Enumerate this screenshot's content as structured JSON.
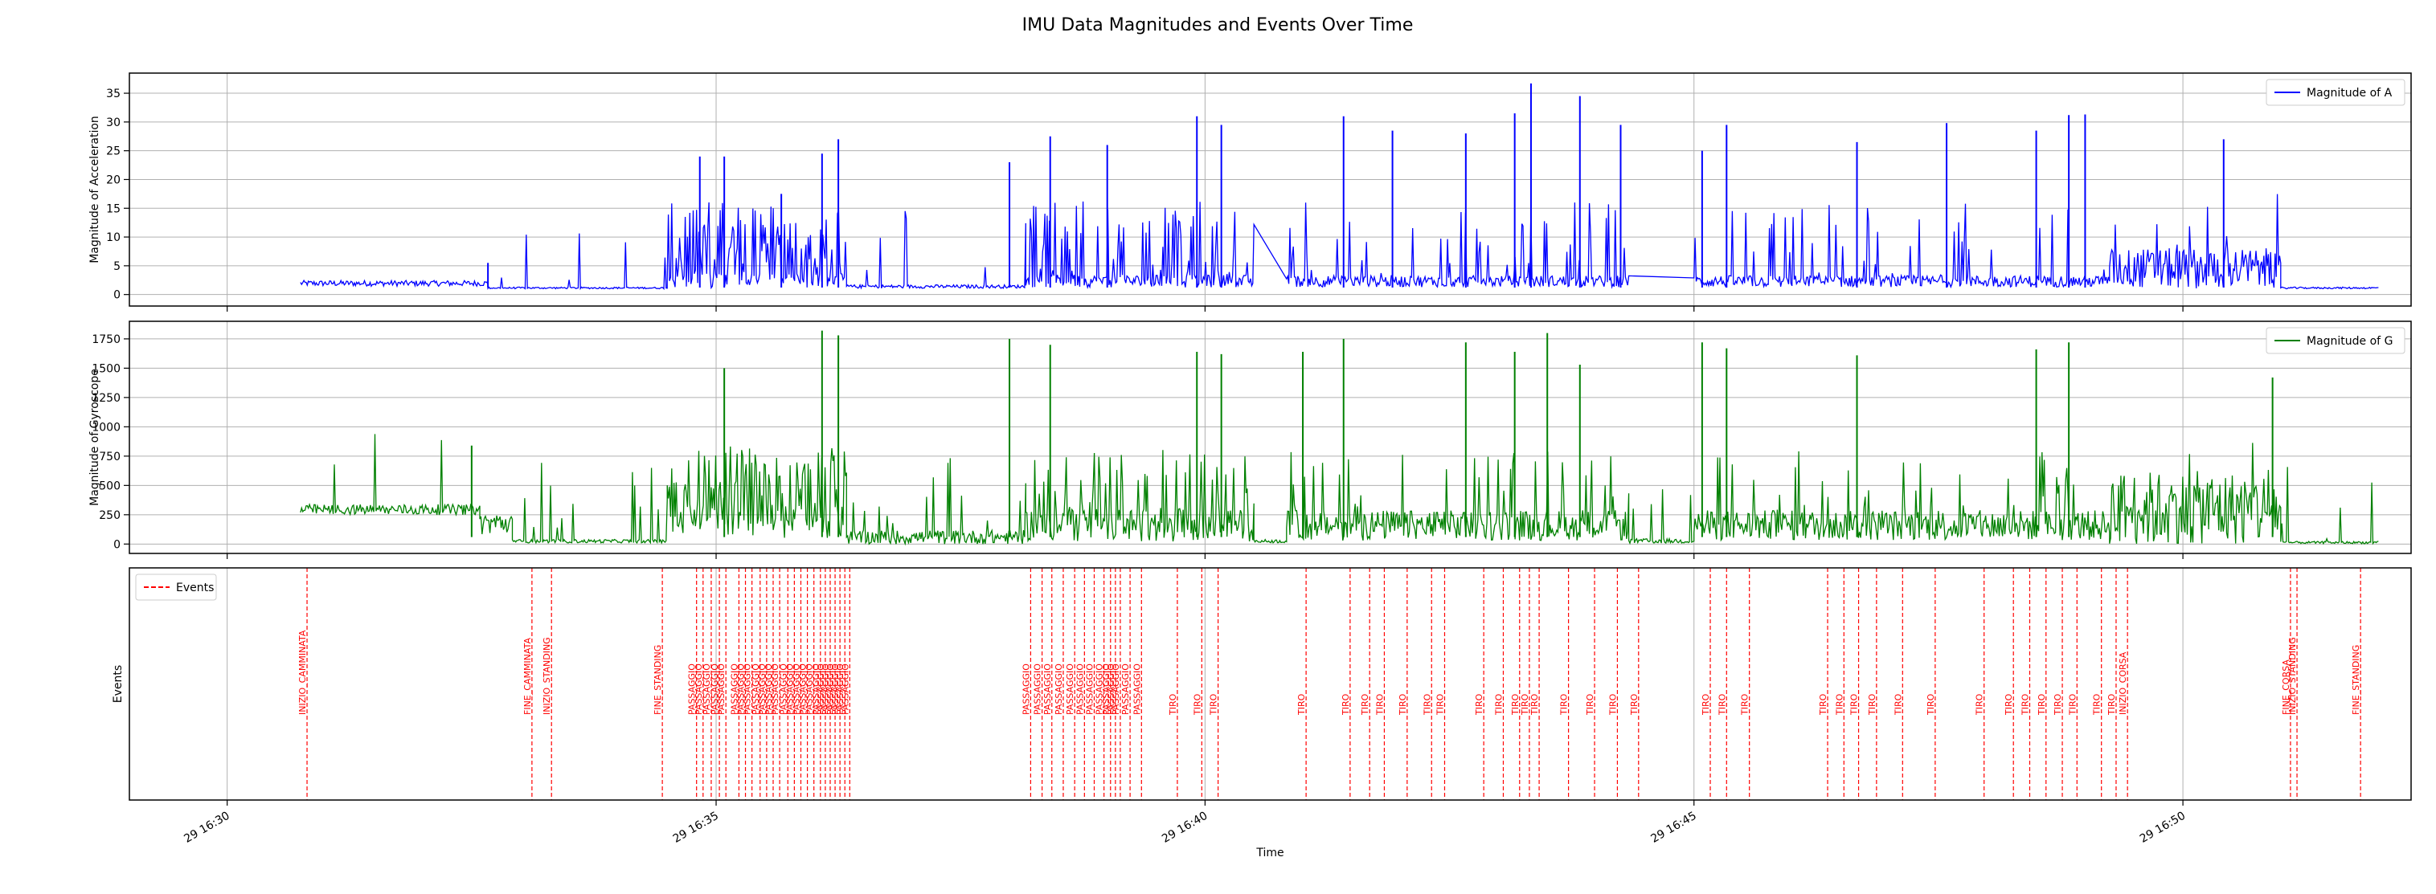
{
  "figure": {
    "title": "IMU Data Magnitudes and Events Over Time"
  },
  "colors": {
    "accel": "#0000ff",
    "gyro": "#008000",
    "events": "#ff0000",
    "grid": "#b0b0b0",
    "axes": "#000000"
  },
  "chart_data": [
    {
      "type": "line",
      "series": [
        {
          "name": "Magnitude of A",
          "color": "#0000ff"
        }
      ],
      "ylabel": "Magnitude of Acceleration",
      "xlabel": "",
      "xlim": [
        "16:29:00",
        "16:52:20"
      ],
      "ylim": [
        -2,
        38.5
      ],
      "yticks": [
        0,
        5,
        10,
        15,
        20,
        25,
        30,
        35
      ],
      "grid": true,
      "legend": "top-right",
      "activity_segments": [
        {
          "start": "16:30:45",
          "end": "16:32:40",
          "base": 1.8,
          "noise": 1.0,
          "spikes": 0
        },
        {
          "start": "16:32:40",
          "end": "16:34:30",
          "base": 1.1,
          "noise": 0.3,
          "spikes": 3
        },
        {
          "start": "16:34:30",
          "end": "16:36:20",
          "base": 2.0,
          "noise": 2.5,
          "spikes": 45
        },
        {
          "start": "16:36:20",
          "end": "16:38:10",
          "base": 1.3,
          "noise": 0.6,
          "spikes": 3
        },
        {
          "start": "16:38:10",
          "end": "16:40:30",
          "base": 2.0,
          "noise": 2.2,
          "spikes": 25
        },
        {
          "start": "16:40:50",
          "end": "16:44:20",
          "base": 2.0,
          "noise": 2.0,
          "spikes": 18
        },
        {
          "start": "16:45:00",
          "end": "16:49:15",
          "base": 2.0,
          "noise": 2.0,
          "spikes": 20
        },
        {
          "start": "16:49:15",
          "end": "16:51:00",
          "base": 3.5,
          "noise": 7.0,
          "spikes": 6
        },
        {
          "start": "16:51:00",
          "end": "16:52:00",
          "base": 1.1,
          "noise": 0.3,
          "spikes": 2
        }
      ],
      "spikes": [
        {
          "t": "16:32:40",
          "v": 5.5
        },
        {
          "t": "16:34:50",
          "v": 24.0
        },
        {
          "t": "16:35:05",
          "v": 24.0
        },
        {
          "t": "16:35:40",
          "v": 17.5
        },
        {
          "t": "16:36:05",
          "v": 24.5
        },
        {
          "t": "16:36:15",
          "v": 27.0
        },
        {
          "t": "16:38:00",
          "v": 23.0
        },
        {
          "t": "16:38:25",
          "v": 27.5
        },
        {
          "t": "16:39:00",
          "v": 26.0
        },
        {
          "t": "16:39:55",
          "v": 31.0
        },
        {
          "t": "16:40:10",
          "v": 29.5
        },
        {
          "t": "16:41:25",
          "v": 31.0
        },
        {
          "t": "16:41:55",
          "v": 28.5
        },
        {
          "t": "16:42:40",
          "v": 28.0
        },
        {
          "t": "16:43:10",
          "v": 31.5
        },
        {
          "t": "16:43:20",
          "v": 36.7
        },
        {
          "t": "16:43:50",
          "v": 34.5
        },
        {
          "t": "16:44:15",
          "v": 29.5
        },
        {
          "t": "16:45:05",
          "v": 25.0
        },
        {
          "t": "16:45:20",
          "v": 29.5
        },
        {
          "t": "16:46:40",
          "v": 26.5
        },
        {
          "t": "16:47:35",
          "v": 29.8
        },
        {
          "t": "16:48:30",
          "v": 28.5
        },
        {
          "t": "16:48:50",
          "v": 31.2
        },
        {
          "t": "16:49:00",
          "v": 31.3
        },
        {
          "t": "16:50:25",
          "v": 27.0
        }
      ]
    },
    {
      "type": "line",
      "series": [
        {
          "name": "Magnitude of G",
          "color": "#008000"
        }
      ],
      "ylabel": "Magnitude of Gyroscope",
      "xlabel": "",
      "xlim": [
        "16:29:00",
        "16:52:20"
      ],
      "ylim": [
        -80,
        1900
      ],
      "yticks": [
        0,
        250,
        500,
        750,
        1000,
        1250,
        1500,
        1750
      ],
      "grid": true,
      "legend": "top-right",
      "activity_segments": [
        {
          "start": "16:30:45",
          "end": "16:32:35",
          "base": 280,
          "noise": 90,
          "spikes": 1
        },
        {
          "start": "16:32:35",
          "end": "16:32:55",
          "base": 150,
          "noise": 200,
          "spikes": 0
        },
        {
          "start": "16:32:55",
          "end": "16:34:30",
          "base": 20,
          "noise": 30,
          "spikes": 6
        },
        {
          "start": "16:34:30",
          "end": "16:36:20",
          "base": 150,
          "noise": 280,
          "spikes": 45
        },
        {
          "start": "16:36:20",
          "end": "16:38:10",
          "base": 40,
          "noise": 120,
          "spikes": 6
        },
        {
          "start": "16:38:10",
          "end": "16:40:30",
          "base": 120,
          "noise": 280,
          "spikes": 25
        },
        {
          "start": "16:40:30",
          "end": "16:40:50",
          "base": 20,
          "noise": 30,
          "spikes": 0
        },
        {
          "start": "16:40:50",
          "end": "16:44:20",
          "base": 120,
          "noise": 260,
          "spikes": 18
        },
        {
          "start": "16:44:20",
          "end": "16:45:00",
          "base": 20,
          "noise": 40,
          "spikes": 2
        },
        {
          "start": "16:45:00",
          "end": "16:49:15",
          "base": 120,
          "noise": 260,
          "spikes": 20
        },
        {
          "start": "16:49:15",
          "end": "16:51:00",
          "base": 200,
          "noise": 650,
          "spikes": 6
        },
        {
          "start": "16:51:00",
          "end": "16:52:00",
          "base": 10,
          "noise": 20,
          "spikes": 2
        }
      ],
      "spikes": [
        {
          "t": "16:32:30",
          "v": 840
        },
        {
          "t": "16:35:05",
          "v": 1500
        },
        {
          "t": "16:36:05",
          "v": 1820
        },
        {
          "t": "16:36:15",
          "v": 1780
        },
        {
          "t": "16:38:00",
          "v": 1750
        },
        {
          "t": "16:38:25",
          "v": 1700
        },
        {
          "t": "16:39:55",
          "v": 1640
        },
        {
          "t": "16:40:10",
          "v": 1620
        },
        {
          "t": "16:41:00",
          "v": 1640
        },
        {
          "t": "16:41:25",
          "v": 1750
        },
        {
          "t": "16:42:40",
          "v": 1720
        },
        {
          "t": "16:43:10",
          "v": 1640
        },
        {
          "t": "16:43:30",
          "v": 1800
        },
        {
          "t": "16:43:50",
          "v": 1530
        },
        {
          "t": "16:45:05",
          "v": 1720
        },
        {
          "t": "16:45:20",
          "v": 1670
        },
        {
          "t": "16:46:40",
          "v": 1610
        },
        {
          "t": "16:48:30",
          "v": 1660
        },
        {
          "t": "16:48:50",
          "v": 1720
        },
        {
          "t": "16:50:55",
          "v": 1420
        }
      ]
    },
    {
      "type": "event-lines",
      "series": [
        {
          "name": "Events",
          "color": "#ff0000"
        }
      ],
      "ylabel": "Events",
      "xlabel": "Time",
      "xlim": [
        "16:29:00",
        "16:52:20"
      ],
      "xticks": [
        {
          "t": "16:30:00",
          "label": "29 16:30"
        },
        {
          "t": "16:35:00",
          "label": "29 16:35"
        },
        {
          "t": "16:40:00",
          "label": "29 16:40"
        },
        {
          "t": "16:45:00",
          "label": "29 16:45"
        },
        {
          "t": "16:50:00",
          "label": "29 16:50"
        }
      ],
      "grid": true,
      "legend": "top-left",
      "events": [
        {
          "t": "16:30:49",
          "label": "INIZIO_CAMMINATA"
        },
        {
          "t": "16:33:07",
          "label": "FINE_CAMMINATA"
        },
        {
          "t": "16:33:19",
          "label": "INIZIO_STANDING"
        },
        {
          "t": "16:34:27",
          "label": "FINE_STANDING"
        },
        {
          "t": "16:34:48",
          "label": "PASSAGGIO"
        },
        {
          "t": "16:34:52",
          "label": "PASSAGGIO"
        },
        {
          "t": "16:34:57",
          "label": "PASSAGGIO"
        },
        {
          "t": "16:35:02",
          "label": "PASSAGGIO"
        },
        {
          "t": "16:35:06",
          "label": "PASSAGGIO"
        },
        {
          "t": "16:35:14",
          "label": "PASSAGGIO"
        },
        {
          "t": "16:35:18",
          "label": "PASSAGGIO"
        },
        {
          "t": "16:35:22",
          "label": "PASSAGGIO"
        },
        {
          "t": "16:35:27",
          "label": "PASSAGGIO"
        },
        {
          "t": "16:35:31",
          "label": "PASSAGGIO"
        },
        {
          "t": "16:35:35",
          "label": "PASSAGGIO"
        },
        {
          "t": "16:35:39",
          "label": "PASSAGGIO"
        },
        {
          "t": "16:35:44",
          "label": "PASSAGGIO"
        },
        {
          "t": "16:35:48",
          "label": "PASSAGGIO"
        },
        {
          "t": "16:35:52",
          "label": "PASSAGGIO"
        },
        {
          "t": "16:35:56",
          "label": "PASSAGGIO"
        },
        {
          "t": "16:36:00",
          "label": "PASSAGGIO"
        },
        {
          "t": "16:36:04",
          "label": "PASSAGGIO"
        },
        {
          "t": "16:36:07",
          "label": "PASSAGGIO"
        },
        {
          "t": "16:36:10",
          "label": "PASSAGGIO"
        },
        {
          "t": "16:36:13",
          "label": "PASSAGGIO"
        },
        {
          "t": "16:36:16",
          "label": "PASSAGGIO"
        },
        {
          "t": "16:36:19",
          "label": "PASSAGGIO"
        },
        {
          "t": "16:36:22",
          "label": "PASSAGGIO"
        },
        {
          "t": "16:38:13",
          "label": "PASSAGGIO"
        },
        {
          "t": "16:38:20",
          "label": "PASSAGGIO"
        },
        {
          "t": "16:38:26",
          "label": "PASSAGGIO"
        },
        {
          "t": "16:38:33",
          "label": "PASSAGGIO"
        },
        {
          "t": "16:38:40",
          "label": "PASSAGGIO"
        },
        {
          "t": "16:38:46",
          "label": "PASSAGGIO"
        },
        {
          "t": "16:38:52",
          "label": "PASSAGGIO"
        },
        {
          "t": "16:38:58",
          "label": "PASSAGGIO"
        },
        {
          "t": "16:39:02",
          "label": "PASSAGGIO"
        },
        {
          "t": "16:39:05",
          "label": "PASSAGGIO"
        },
        {
          "t": "16:39:08",
          "label": "PASSAGGIO"
        },
        {
          "t": "16:39:14",
          "label": "PASSAGGIO"
        },
        {
          "t": "16:39:21",
          "label": "PASSAGGIO"
        },
        {
          "t": "16:39:43",
          "label": "TIRO"
        },
        {
          "t": "16:39:58",
          "label": "TIRO"
        },
        {
          "t": "16:40:08",
          "label": "TIRO"
        },
        {
          "t": "16:41:02",
          "label": "TIRO"
        },
        {
          "t": "16:41:29",
          "label": "TIRO"
        },
        {
          "t": "16:41:41",
          "label": "TIRO"
        },
        {
          "t": "16:41:50",
          "label": "TIRO"
        },
        {
          "t": "16:42:04",
          "label": "TIRO"
        },
        {
          "t": "16:42:19",
          "label": "TIRO"
        },
        {
          "t": "16:42:27",
          "label": "TIRO"
        },
        {
          "t": "16:42:51",
          "label": "TIRO"
        },
        {
          "t": "16:43:03",
          "label": "TIRO"
        },
        {
          "t": "16:43:13",
          "label": "TIRO"
        },
        {
          "t": "16:43:19",
          "label": "TIRO"
        },
        {
          "t": "16:43:25",
          "label": "TIRO"
        },
        {
          "t": "16:43:43",
          "label": "TIRO"
        },
        {
          "t": "16:43:59",
          "label": "TIRO"
        },
        {
          "t": "16:44:13",
          "label": "TIRO"
        },
        {
          "t": "16:44:26",
          "label": "TIRO"
        },
        {
          "t": "16:45:10",
          "label": "TIRO"
        },
        {
          "t": "16:45:20",
          "label": "TIRO"
        },
        {
          "t": "16:45:34",
          "label": "TIRO"
        },
        {
          "t": "16:46:22",
          "label": "TIRO"
        },
        {
          "t": "16:46:32",
          "label": "TIRO"
        },
        {
          "t": "16:46:41",
          "label": "TIRO"
        },
        {
          "t": "16:46:52",
          "label": "TIRO"
        },
        {
          "t": "16:47:08",
          "label": "TIRO"
        },
        {
          "t": "16:47:28",
          "label": "TIRO"
        },
        {
          "t": "16:47:58",
          "label": "TIRO"
        },
        {
          "t": "16:48:16",
          "label": "TIRO"
        },
        {
          "t": "16:48:26",
          "label": "TIRO"
        },
        {
          "t": "16:48:36",
          "label": "TIRO"
        },
        {
          "t": "16:48:46",
          "label": "TIRO"
        },
        {
          "t": "16:48:55",
          "label": "TIRO"
        },
        {
          "t": "16:49:10",
          "label": "TIRO"
        },
        {
          "t": "16:49:19",
          "label": "TIRO"
        },
        {
          "t": "16:49:26",
          "label": "INIZIO_CORSA"
        },
        {
          "t": "16:51:06",
          "label": "FINE_CORSA"
        },
        {
          "t": "16:51:10",
          "label": "INIZIO_STANDING"
        },
        {
          "t": "16:51:49",
          "label": "FINE_STANDING"
        }
      ]
    }
  ]
}
